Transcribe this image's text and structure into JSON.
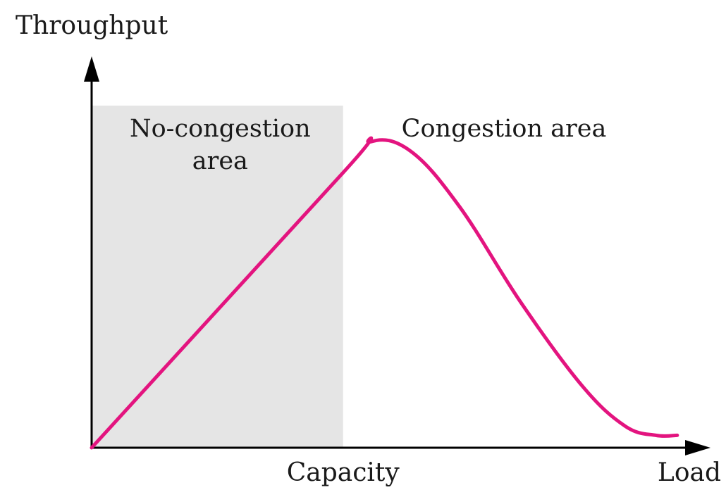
{
  "chart_data": {
    "type": "line",
    "title": "",
    "xlabel": "Load",
    "ylabel": "Throughput",
    "x_tick_labels": [
      {
        "label": "Capacity",
        "x": 0.41
      }
    ],
    "regions": [
      {
        "label_lines": [
          "No-congestion",
          "area"
        ],
        "x_start": 0,
        "x_end": 0.41,
        "shaded": true,
        "fill": "#e5e5e5"
      },
      {
        "label_lines": [
          "Congestion area"
        ],
        "x_start": 0.41,
        "x_end": 1.0,
        "shaded": false
      }
    ],
    "series": [
      {
        "color": "#e3147f",
        "points": [
          [
            0.0,
            0.0
          ],
          [
            0.41,
            0.89
          ],
          [
            0.455,
            0.99
          ],
          [
            0.52,
            0.96
          ],
          [
            0.6,
            0.78
          ],
          [
            0.7,
            0.47
          ],
          [
            0.8,
            0.2
          ],
          [
            0.87,
            0.07
          ],
          [
            0.92,
            0.04
          ],
          [
            0.955,
            0.04
          ]
        ]
      }
    ],
    "xlim": [
      0,
      1
    ],
    "ylim": [
      0,
      1
    ],
    "grid": false,
    "legend": "none"
  }
}
